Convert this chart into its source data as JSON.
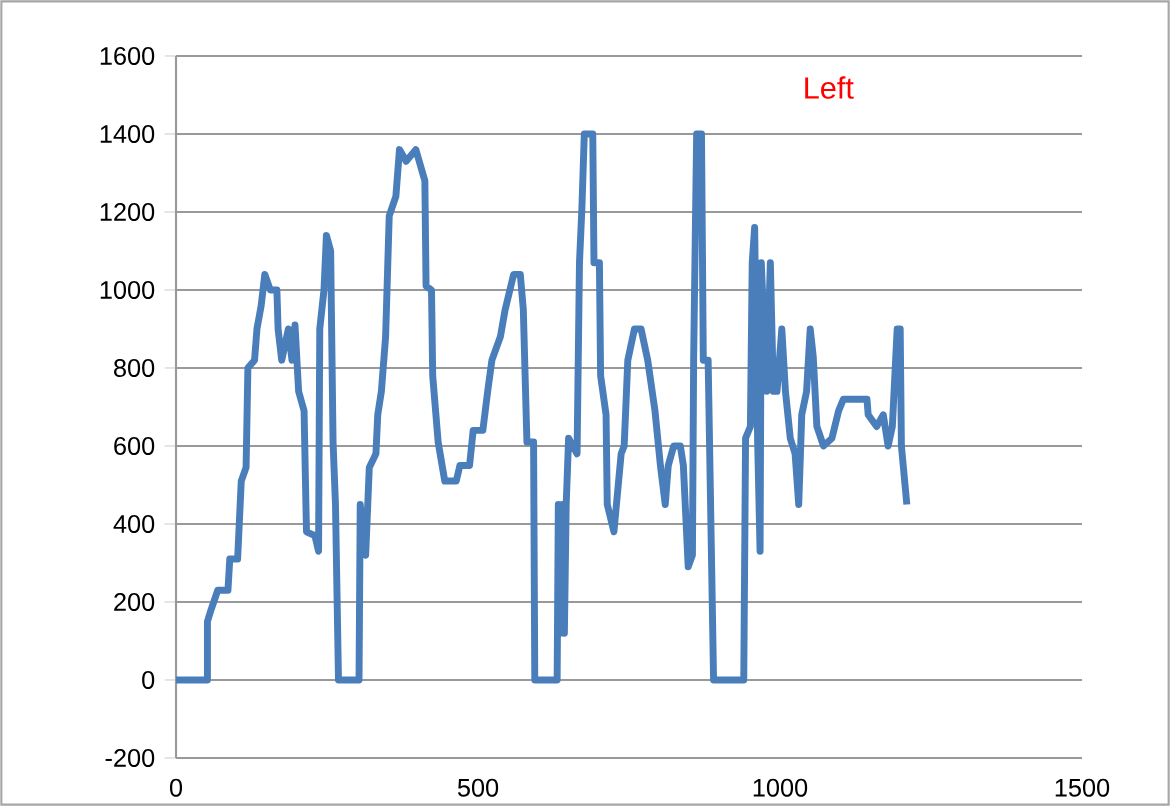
{
  "chart_data": {
    "type": "line",
    "annotations": [
      "Left"
    ],
    "series": [
      {
        "color": "#4a7ebb",
        "x": [
          0,
          52,
          52,
          58,
          69,
          86,
          89,
          102,
          108,
          116,
          119,
          130,
          134,
          141,
          147,
          156,
          167,
          169,
          175,
          186,
          192,
          197,
          203,
          212,
          216,
          230,
          236,
          238,
          245,
          249,
          256,
          260,
          264,
          269,
          303,
          305,
          314,
          320,
          331,
          334,
          340,
          347,
          353,
          364,
          370,
          381,
          397,
          412,
          414,
          423,
          425,
          434,
          445,
          464,
          470,
          486,
          492,
          508,
          516,
          523,
          537,
          545,
          559,
          570,
          575,
          581,
          592,
          594,
          631,
          633,
          636,
          640,
          643,
          646,
          650,
          664,
          668,
          672,
          676,
          690,
          692,
          701,
          703,
          712,
          714,
          725,
          737,
          742,
          748,
          759,
          770,
          781,
          793,
          802,
          810,
          815,
          824,
          835,
          840,
          848,
          855,
          857,
          862,
          870,
          873,
          881,
          890,
          940,
          943,
          951,
          954,
          958,
          963,
          967,
          969,
          978,
          984,
          989,
          995,
          1003,
          1009,
          1017,
          1025,
          1031,
          1036,
          1044,
          1050,
          1055,
          1061,
          1072,
          1086,
          1097,
          1105,
          1144,
          1146,
          1160,
          1171,
          1179,
          1186,
          1194,
          1199,
          1201,
          1210
        ],
        "values": [
          0,
          0,
          150,
          180,
          230,
          230,
          310,
          310,
          510,
          545,
          800,
          820,
          900,
          960,
          1040,
          1000,
          1000,
          900,
          820,
          900,
          820,
          910,
          740,
          690,
          380,
          370,
          330,
          900,
          1000,
          1140,
          1100,
          610,
          450,
          0,
          0,
          450,
          320,
          545,
          580,
          680,
          740,
          880,
          1190,
          1240,
          1360,
          1330,
          1360,
          1280,
          1010,
          1000,
          780,
          610,
          510,
          510,
          550,
          550,
          640,
          640,
          740,
          820,
          880,
          950,
          1040,
          1040,
          950,
          610,
          610,
          0,
          0,
          450,
          120,
          450,
          120,
          450,
          620,
          580,
          1070,
          1210,
          1400,
          1400,
          1070,
          1070,
          780,
          680,
          450,
          380,
          580,
          600,
          820,
          900,
          900,
          820,
          690,
          550,
          450,
          550,
          600,
          600,
          550,
          290,
          320,
          820,
          1400,
          1400,
          820,
          820,
          0,
          0,
          620,
          650,
          1070,
          1160,
          610,
          330,
          1070,
          740,
          1070,
          740,
          740,
          900,
          740,
          620,
          580,
          450,
          680,
          740,
          900,
          830,
          650,
          600,
          620,
          690,
          720,
          720,
          680,
          650,
          680,
          600,
          650,
          900,
          900,
          600,
          450
        ]
      }
    ],
    "xlim": [
      0,
      1500
    ],
    "ylim": [
      -200,
      1600
    ],
    "xticks": [
      0,
      500,
      1000,
      1500
    ],
    "yticks": [
      -200,
      0,
      200,
      400,
      600,
      800,
      1000,
      1200,
      1400,
      1600
    ],
    "grid": "y"
  }
}
